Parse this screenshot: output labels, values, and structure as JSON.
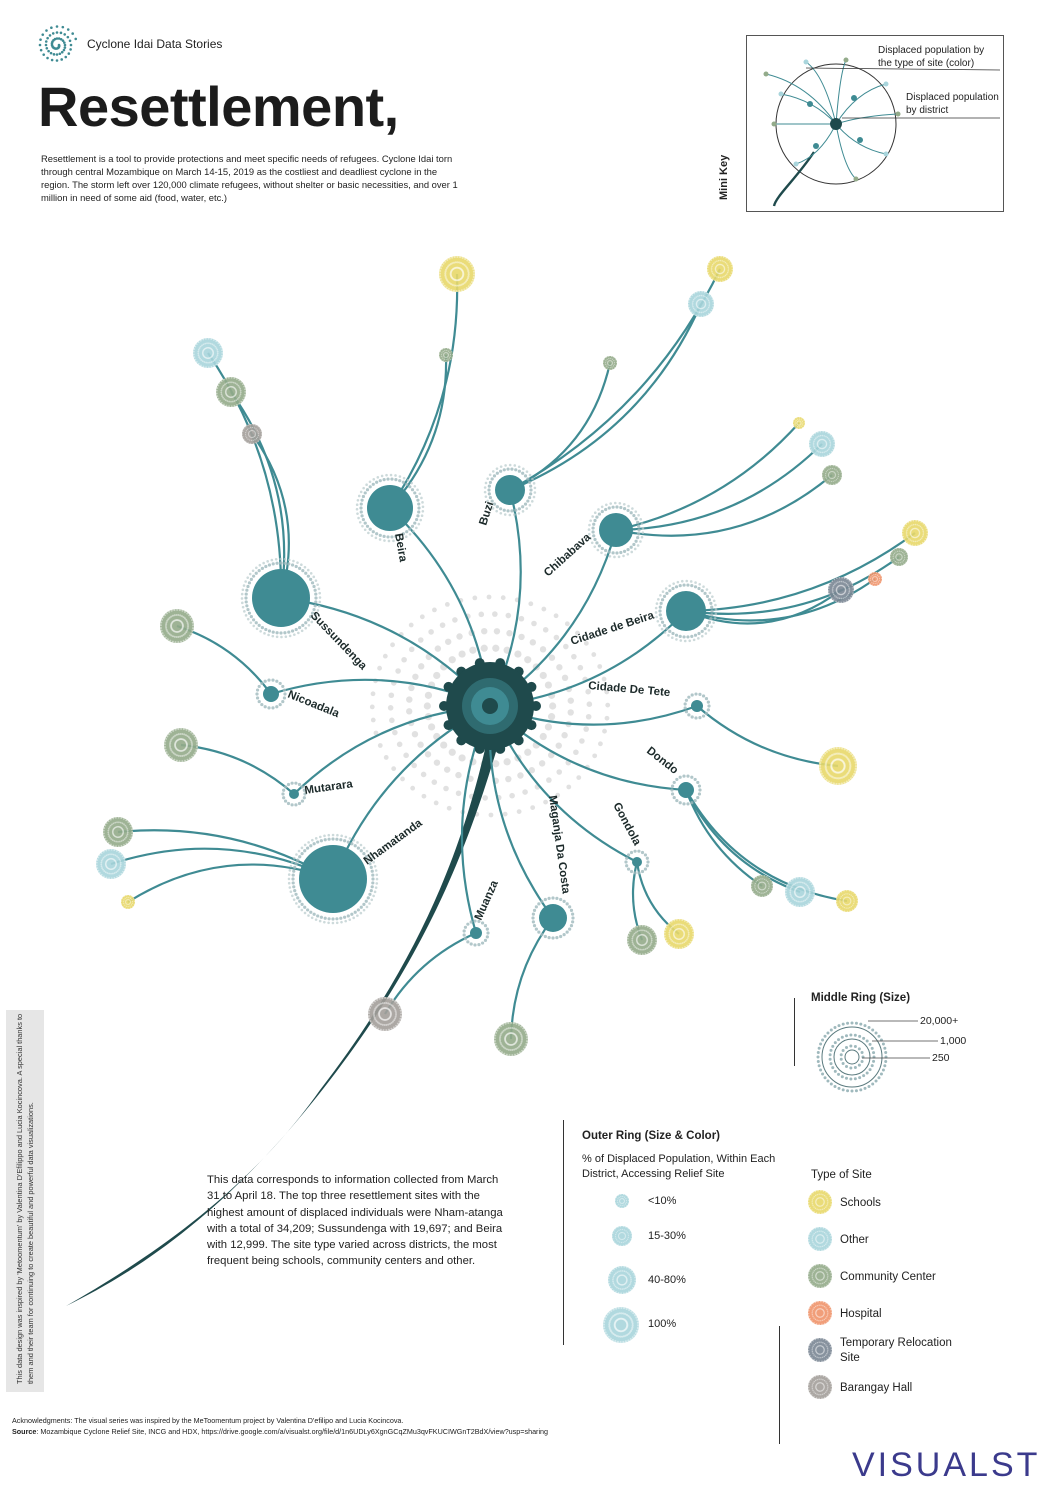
{
  "header": {
    "brand": "Cyclone Idai Data Stories",
    "title": "Resettlement,",
    "intro": "Resettlement is a tool to provide protections and meet specific needs of refugees. Cyclone Idai torn through central Mozambique on March 14-15, 2019 as the costliest and deadliest cyclone in the region. The storm left over 120,000 climate refugees, without shelter or basic necessities, and over 1 million in need of some aid (food, water, etc.)"
  },
  "mini_key": {
    "label": "Mini Key",
    "by_site_type": "Displaced population by the type of site (color)",
    "by_district": "Displaced population by district"
  },
  "districts": [
    "Beira",
    "Buzi",
    "Chibabava",
    "Cidade de Beira",
    "Cidade De Tete",
    "Dondo",
    "Gondola",
    "Maganja Da Costa",
    "Muanza",
    "Nhamatanda",
    "Mutarara",
    "Nicoadala",
    "Sussundenga"
  ],
  "middle_ring": {
    "title": "Middle Ring (Size)",
    "levels": [
      "20,000+",
      "1,000",
      "250"
    ]
  },
  "outer_ring": {
    "title": "Outer Ring (Size & Color)",
    "subtitle": "% of Displaced Population, Within Each District, Accessing Relief Site",
    "levels": [
      "<10%",
      "15-30%",
      "40-80%",
      "100%"
    ]
  },
  "site_types": {
    "title": "Type of Site",
    "items": [
      {
        "label": "Schools",
        "color": "#e8d86a"
      },
      {
        "label": "Other",
        "color": "#a9d5dc"
      },
      {
        "label": "Community Center",
        "color": "#93ab8a"
      },
      {
        "label": "Hospital",
        "color": "#f0936a"
      },
      {
        "label": "Temporary Relocation Site",
        "color": "#7a8694"
      },
      {
        "label": "Barangay Hall",
        "color": "#a39e9a"
      }
    ]
  },
  "note": "This data corresponds to information collected from March 31 to April 18. The top three resettlement sites with the highest amount of displaced individuals were Nham-atanga with a total of 34,209; Sussundenga with 19,697; and Beira with 12,999. The site type varied across districts, the most frequent being schools, community centers and other.",
  "sidebar": "This data design was inspired by 'Metoomentum' by Valentina D'Efilippo and Lucia Kocincova. A special thanks to them and their team for continuing to create beautiful and powerful data visualizations.",
  "footer": {
    "ack": "Acknowledgments: The visual series was inspired by the MeToomentum project by Valentina D'efilipo and Lucia Kocincova.",
    "source_label": "Source",
    "source": ": Mozambique Cyclone Relief Site, INCG and HDX, https://drive.google.com/a/visualst.org/file/d/1n6UDLy6XgnGCqZMu3qvFKUCIWGnT2BdX/view?usp=sharing",
    "logo": "VISUALST"
  },
  "colors": {
    "teal_dark": "#1f4a4c",
    "teal": "#3f8b93",
    "stem": "#1f4a4c"
  }
}
